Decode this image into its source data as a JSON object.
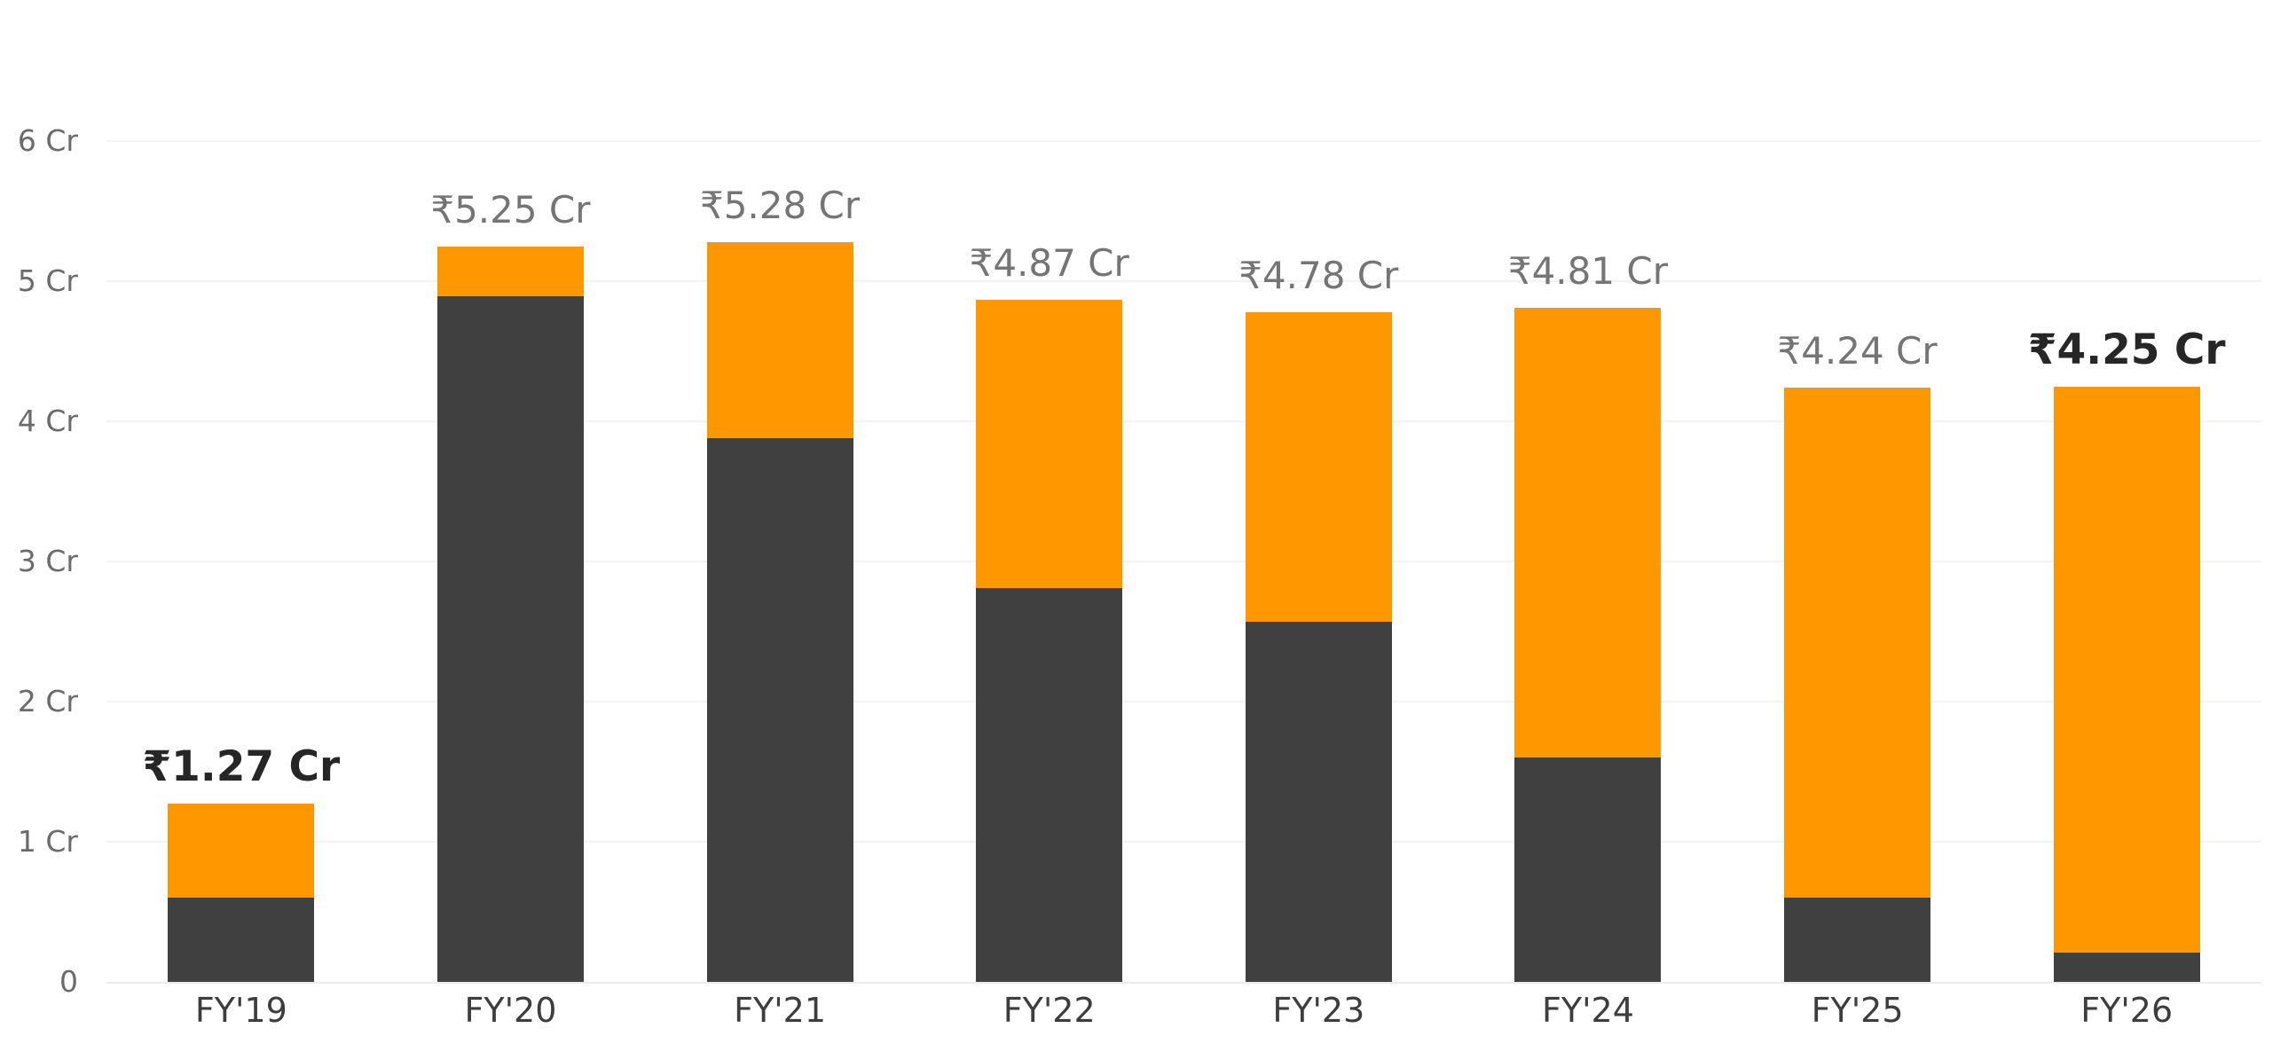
{
  "chart_data": {
    "type": "bar",
    "stacked": true,
    "title": "",
    "xlabel": "",
    "ylabel": "",
    "categories": [
      "FY'19",
      "FY'20",
      "FY'21",
      "FY'22",
      "FY'23",
      "FY'24",
      "FY'25",
      "FY'26"
    ],
    "series": [
      {
        "name": "dark-segment",
        "color": "#404040",
        "values": [
          0.6,
          4.89,
          3.88,
          2.81,
          2.57,
          1.6,
          0.6,
          0.21
        ]
      },
      {
        "name": "orange-segment",
        "color": "#FF9800",
        "values": [
          0.67,
          0.36,
          1.4,
          2.06,
          2.21,
          3.21,
          3.64,
          4.04
        ]
      }
    ],
    "totals": [
      1.27,
      5.25,
      5.28,
      4.87,
      4.78,
      4.81,
      4.24,
      4.25
    ],
    "total_labels": [
      "₹1.27 Cr",
      "₹5.25 Cr",
      "₹5.28 Cr",
      "₹4.87 Cr",
      "₹4.78 Cr",
      "₹4.81 Cr",
      "₹4.24 Cr",
      "₹4.25 Cr"
    ],
    "emphasized": [
      true,
      false,
      false,
      false,
      false,
      false,
      false,
      true
    ],
    "y_ticks": [
      {
        "value": 0,
        "label": "0"
      },
      {
        "value": 1,
        "label": "1 Cr"
      },
      {
        "value": 2,
        "label": "2 Cr"
      },
      {
        "value": 3,
        "label": "3 Cr"
      },
      {
        "value": 4,
        "label": "4 Cr"
      },
      {
        "value": 5,
        "label": "5 Cr"
      },
      {
        "value": 6,
        "label": "6 Cr"
      }
    ],
    "ylim": [
      0,
      7
    ],
    "grid": true,
    "legend": "none",
    "colors": {
      "dark": "#404040",
      "orange": "#FF9800",
      "label_gray": "#757575",
      "label_dark": "#262626",
      "grid": "#f3f3f3",
      "axis_text": "#6b6b6b"
    }
  }
}
